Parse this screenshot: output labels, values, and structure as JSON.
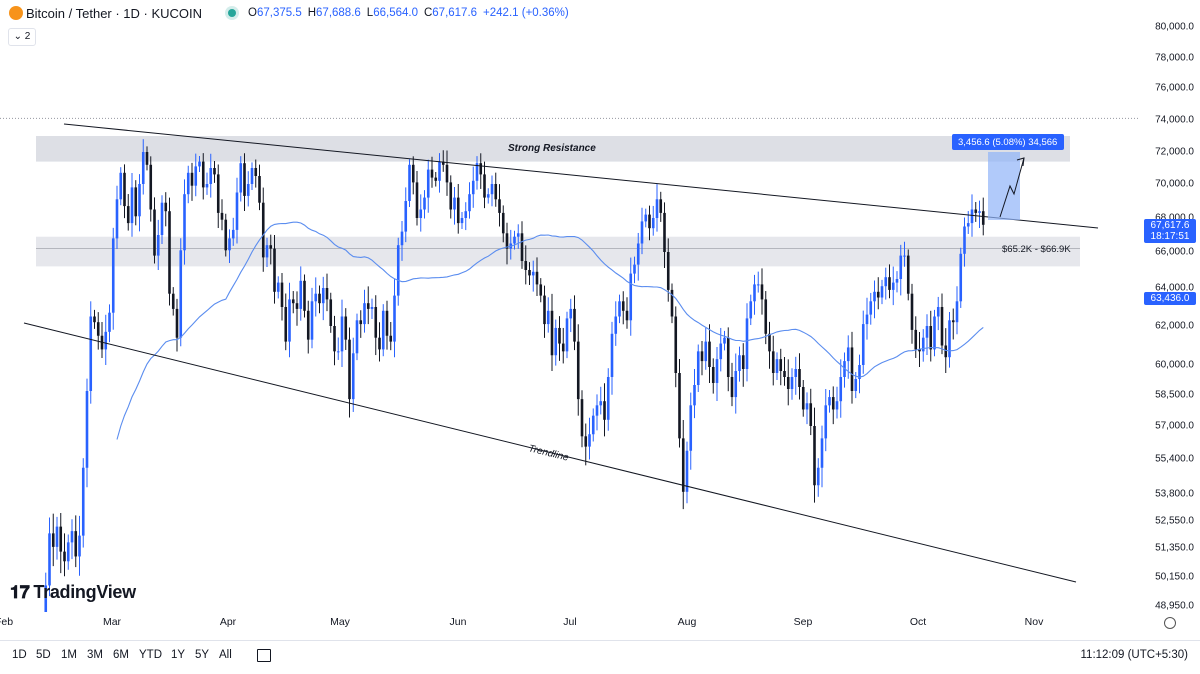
{
  "header": {
    "symbol": "Bitcoin / Tether · 1D · KUCOIN",
    "ohlc": [
      {
        "label": "O",
        "value": "67,375.5"
      },
      {
        "label": "H",
        "value": "67,688.6"
      },
      {
        "label": "L",
        "value": "66,564.0"
      },
      {
        "label": "C",
        "value": "67,617.6"
      },
      {
        "label": "",
        "value": "+242.1 (+0.36%)"
      }
    ],
    "indicator_count": "2"
  },
  "colors": {
    "up": "#2962ff",
    "down": "#131722",
    "ma": "#5b8def",
    "zone": "#d1d4dc",
    "accent": "#2962ff"
  },
  "chart_data": {
    "type": "candlestick",
    "price_axis_ticks": [
      "80,000.0",
      "78,000.0",
      "76,000.0",
      "74,000.0",
      "72,000.0",
      "70,000.0",
      "68,000.0",
      "66,000.0",
      "64,000.0",
      "62,000.0",
      "60,000.0",
      "58,500.0",
      "57,000.0",
      "55,400.0",
      "53,800.0",
      "52,550.0",
      "51,350.0",
      "50,150.0",
      "48,950.0"
    ],
    "time_axis_labels": [
      "Feb",
      "Mar",
      "Apr",
      "May",
      "Jun",
      "Jul",
      "Aug",
      "Sep",
      "Oct",
      "Nov"
    ],
    "annotations": {
      "resistance_label": "Strong  Resistance",
      "support_label": "$65.2K - $66.9K",
      "trendline_label": "Trendline",
      "measure_label": "3,456.6 (5.08%) 34,566"
    },
    "current_price": "67,617.6",
    "countdown": "18:17:51",
    "ma_value": "63,436.0",
    "resistance_zone": [
      71.4,
      73.0
    ],
    "support_zone": [
      65.2,
      66.9
    ],
    "price_range": [
      48.0,
      80.5
    ],
    "candles_close_k": [
      48.2,
      49.8,
      52.0,
      51.4,
      52.3,
      51.2,
      50.8,
      51.6,
      52.1,
      51.0,
      51.9,
      55.0,
      58.7,
      62.5,
      62.2,
      61.5,
      60.8,
      61.7,
      62.7,
      66.8,
      69.1,
      70.7,
      68.7,
      67.7,
      69.8,
      68.1,
      70.0,
      72.0,
      71.2,
      68.5,
      65.8,
      67.0,
      68.9,
      68.4,
      63.7,
      62.9,
      61.4,
      66.1,
      69.4,
      70.7,
      69.9,
      71.1,
      71.4,
      69.8,
      70.0,
      71.0,
      70.6,
      68.3,
      67.9,
      66.1,
      66.8,
      67.3,
      69.5,
      71.3,
      69.3,
      70.0,
      71.0,
      70.5,
      68.9,
      65.7,
      66.4,
      66.2,
      63.8,
      64.3,
      63.0,
      61.2,
      63.4,
      63.2,
      62.9,
      64.4,
      62.8,
      61.3,
      63.3,
      63.7,
      63.2,
      64.0,
      63.4,
      62.0,
      60.7,
      60.7,
      62.5,
      61.3,
      58.3,
      60.6,
      62.3,
      62.1,
      63.2,
      62.9,
      63.0,
      61.4,
      60.8,
      62.8,
      61.5,
      61.2,
      63.6,
      66.4,
      67.2,
      69.0,
      71.2,
      70.1,
      68.0,
      68.5,
      69.2,
      70.9,
      70.4,
      70.2,
      71.4,
      71.2,
      70.1,
      68.5,
      69.2,
      67.7,
      68.0,
      68.4,
      69.4,
      70.2,
      71.3,
      70.6,
      69.2,
      69.4,
      70.0,
      69.1,
      68.3,
      67.1,
      66.2,
      66.5,
      66.9,
      67.1,
      65.5,
      65.0,
      64.7,
      64.9,
      64.2,
      63.6,
      62.1,
      62.8,
      60.5,
      61.9,
      61.1,
      60.7,
      62.4,
      62.9,
      61.2,
      58.3,
      56.5,
      56.0,
      56.6,
      57.5,
      58.0,
      58.2,
      57.3,
      59.4,
      61.6,
      62.5,
      63.3,
      62.8,
      62.3,
      64.8,
      65.3,
      66.5,
      67.8,
      68.2,
      67.4,
      68.0,
      69.1,
      68.3,
      66.0,
      63.9,
      62.5,
      59.6,
      56.4,
      53.9,
      55.8,
      58.0,
      59.0,
      60.7,
      60.2,
      61.2,
      59.9,
      59.1,
      60.3,
      61.1,
      61.4,
      59.4,
      58.4,
      59.7,
      60.5,
      59.8,
      62.4,
      63.3,
      64.2,
      64.2,
      63.4,
      61.6,
      60.7,
      59.6,
      60.3,
      59.7,
      59.4,
      58.8,
      59.4,
      59.8,
      58.9,
      57.8,
      58.1,
      57.0,
      54.2,
      55.0,
      56.4,
      58.0,
      58.4,
      57.8,
      58.2,
      59.4,
      60.2,
      60.9,
      58.7,
      59.3,
      60.0,
      62.1,
      62.6,
      63.3,
      63.8,
      63.5,
      64.1,
      64.6,
      63.9,
      64.3,
      64.5,
      65.8,
      65.8,
      63.7,
      61.8,
      60.8,
      60.7,
      61.4,
      62.0,
      60.8,
      62.5,
      63.0,
      61.0,
      60.4,
      62.3,
      62.2,
      63.3,
      65.9,
      67.5,
      67.7,
      68.5,
      68.3,
      68.4,
      67.6
    ]
  },
  "footer": {
    "ranges": [
      "1D",
      "5D",
      "1M",
      "3M",
      "6M",
      "YTD",
      "1Y",
      "5Y",
      "All"
    ],
    "clock": "11:12:09 (UTC+5:30)"
  },
  "watermark": "TradingView"
}
